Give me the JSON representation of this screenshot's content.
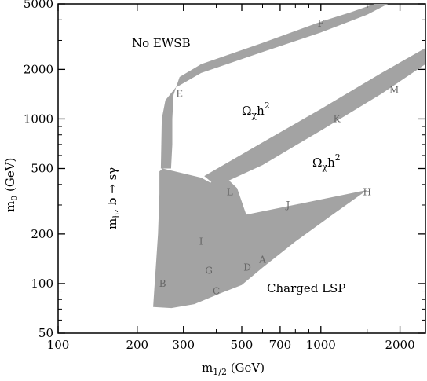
{
  "chart_data": {
    "type": "area",
    "title": "",
    "xlabel": {
      "main": "m",
      "sub": "1/2",
      "unit": " (GeV)"
    },
    "ylabel": {
      "main": "m",
      "sub": "0",
      "unit": " (GeV)"
    },
    "xscale": "log",
    "yscale": "log",
    "xlim": [
      100,
      2500
    ],
    "ylim": [
      50,
      5000
    ],
    "x_ticks": [
      100,
      200,
      300,
      500,
      700,
      1000,
      2000
    ],
    "y_ticks": [
      50,
      100,
      200,
      500,
      1000,
      2000,
      5000
    ],
    "x_tick_labels": [
      "100",
      "200",
      "300",
      "500",
      "700",
      "1000",
      "2000"
    ],
    "y_tick_labels": [
      "50",
      "100",
      "200",
      "500",
      "1000",
      "2000",
      "5000"
    ],
    "region_labels": {
      "no_ewsb": "No EWSB",
      "omega_1": {
        "main": "Ω",
        "sub": "χ",
        "mid": "h",
        "sup": "2"
      },
      "omega_2": {
        "main": "Ω",
        "sub": "χ",
        "mid": "h",
        "sup": "2"
      },
      "mh_bsg": {
        "a": "m",
        "a_sub": "h",
        "b": ", b → sγ"
      },
      "charged_lsp": "Charged LSP"
    },
    "excluded_region": [
      [
        230,
        72
      ],
      [
        270,
        71
      ],
      [
        330,
        75
      ],
      [
        420,
        88
      ],
      [
        500,
        98
      ],
      [
        600,
        125
      ],
      [
        800,
        180
      ],
      [
        1100,
        260
      ],
      [
        1500,
        370
      ],
      [
        520,
        262
      ],
      [
        480,
        380
      ],
      [
        420,
        465
      ],
      [
        380,
        410
      ],
      [
        350,
        440
      ],
      [
        250,
        500
      ],
      [
        243,
        480
      ],
      [
        243,
        350
      ],
      [
        240,
        200
      ],
      [
        235,
        120
      ],
      [
        232,
        90
      ]
    ],
    "focus_band_outer": [
      [
        246,
        500
      ],
      [
        248,
        1000
      ],
      [
        256,
        1300
      ],
      [
        280,
        1550
      ],
      [
        350,
        1900
      ],
      [
        600,
        2550
      ],
      [
        1000,
        3350
      ],
      [
        1500,
        4300
      ],
      [
        1800,
        5000
      ]
    ],
    "focus_band_inner": [
      [
        1600,
        5000
      ],
      [
        1300,
        4450
      ],
      [
        1000,
        3900
      ],
      [
        600,
        2900
      ],
      [
        350,
        2150
      ],
      [
        290,
        1800
      ],
      [
        275,
        1400
      ],
      [
        272,
        1000
      ],
      [
        272,
        700
      ],
      [
        269,
        500
      ]
    ],
    "coann_band_outer": [
      [
        360,
        450
      ],
      [
        600,
        720
      ],
      [
        1000,
        1150
      ],
      [
        1700,
        1900
      ],
      [
        2500,
        2700
      ]
    ],
    "coann_band_inner": [
      [
        2500,
        2150
      ],
      [
        1700,
        1420
      ],
      [
        1000,
        850
      ],
      [
        600,
        525
      ],
      [
        400,
        390
      ]
    ],
    "benchmark_points": [
      {
        "name": "A",
        "x": 600,
        "y": 140
      },
      {
        "name": "B",
        "x": 250,
        "y": 100
      },
      {
        "name": "C",
        "x": 400,
        "y": 90
      },
      {
        "name": "D",
        "x": 525,
        "y": 125
      },
      {
        "name": "E",
        "x": 290,
        "y": 1420
      },
      {
        "name": "F",
        "x": 1000,
        "y": 3800
      },
      {
        "name": "G",
        "x": 375,
        "y": 120
      },
      {
        "name": "H",
        "x": 1500,
        "y": 360
      },
      {
        "name": "I",
        "x": 350,
        "y": 180
      },
      {
        "name": "J",
        "x": 750,
        "y": 300
      },
      {
        "name": "K",
        "x": 1150,
        "y": 1000
      },
      {
        "name": "L",
        "x": 450,
        "y": 360
      },
      {
        "name": "M",
        "x": 1900,
        "y": 1500
      }
    ],
    "fill_color": "#a3a3a3",
    "grid": false
  }
}
